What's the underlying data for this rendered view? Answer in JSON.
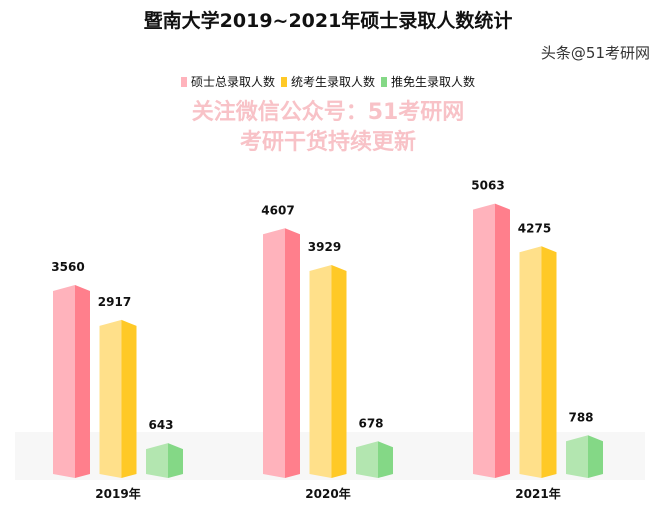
{
  "chart_data": {
    "type": "bar",
    "title": "暨南大学2019~2021年硕士录取人数统计",
    "categories": [
      "2019年",
      "2020年",
      "2021年"
    ],
    "series": [
      {
        "name": "硕士总录取人数",
        "values": [
          3560,
          4607,
          5063
        ],
        "color": "#ffb3bc",
        "side_color": "#ff7f8c"
      },
      {
        "name": "统考生录取人数",
        "values": [
          2917,
          3929,
          4275
        ],
        "color": "#ffe08a",
        "side_color": "#ffc926"
      },
      {
        "name": "推免生录取人数",
        "values": [
          643,
          678,
          788
        ],
        "color": "#b3e6b0",
        "side_color": "#84d886"
      }
    ],
    "legend_position": "top",
    "grid": false
  },
  "watermark": {
    "line1": "关注微信公众号：51考研网",
    "line2": "考研干货持续更新",
    "source": "头条@51考研网"
  }
}
